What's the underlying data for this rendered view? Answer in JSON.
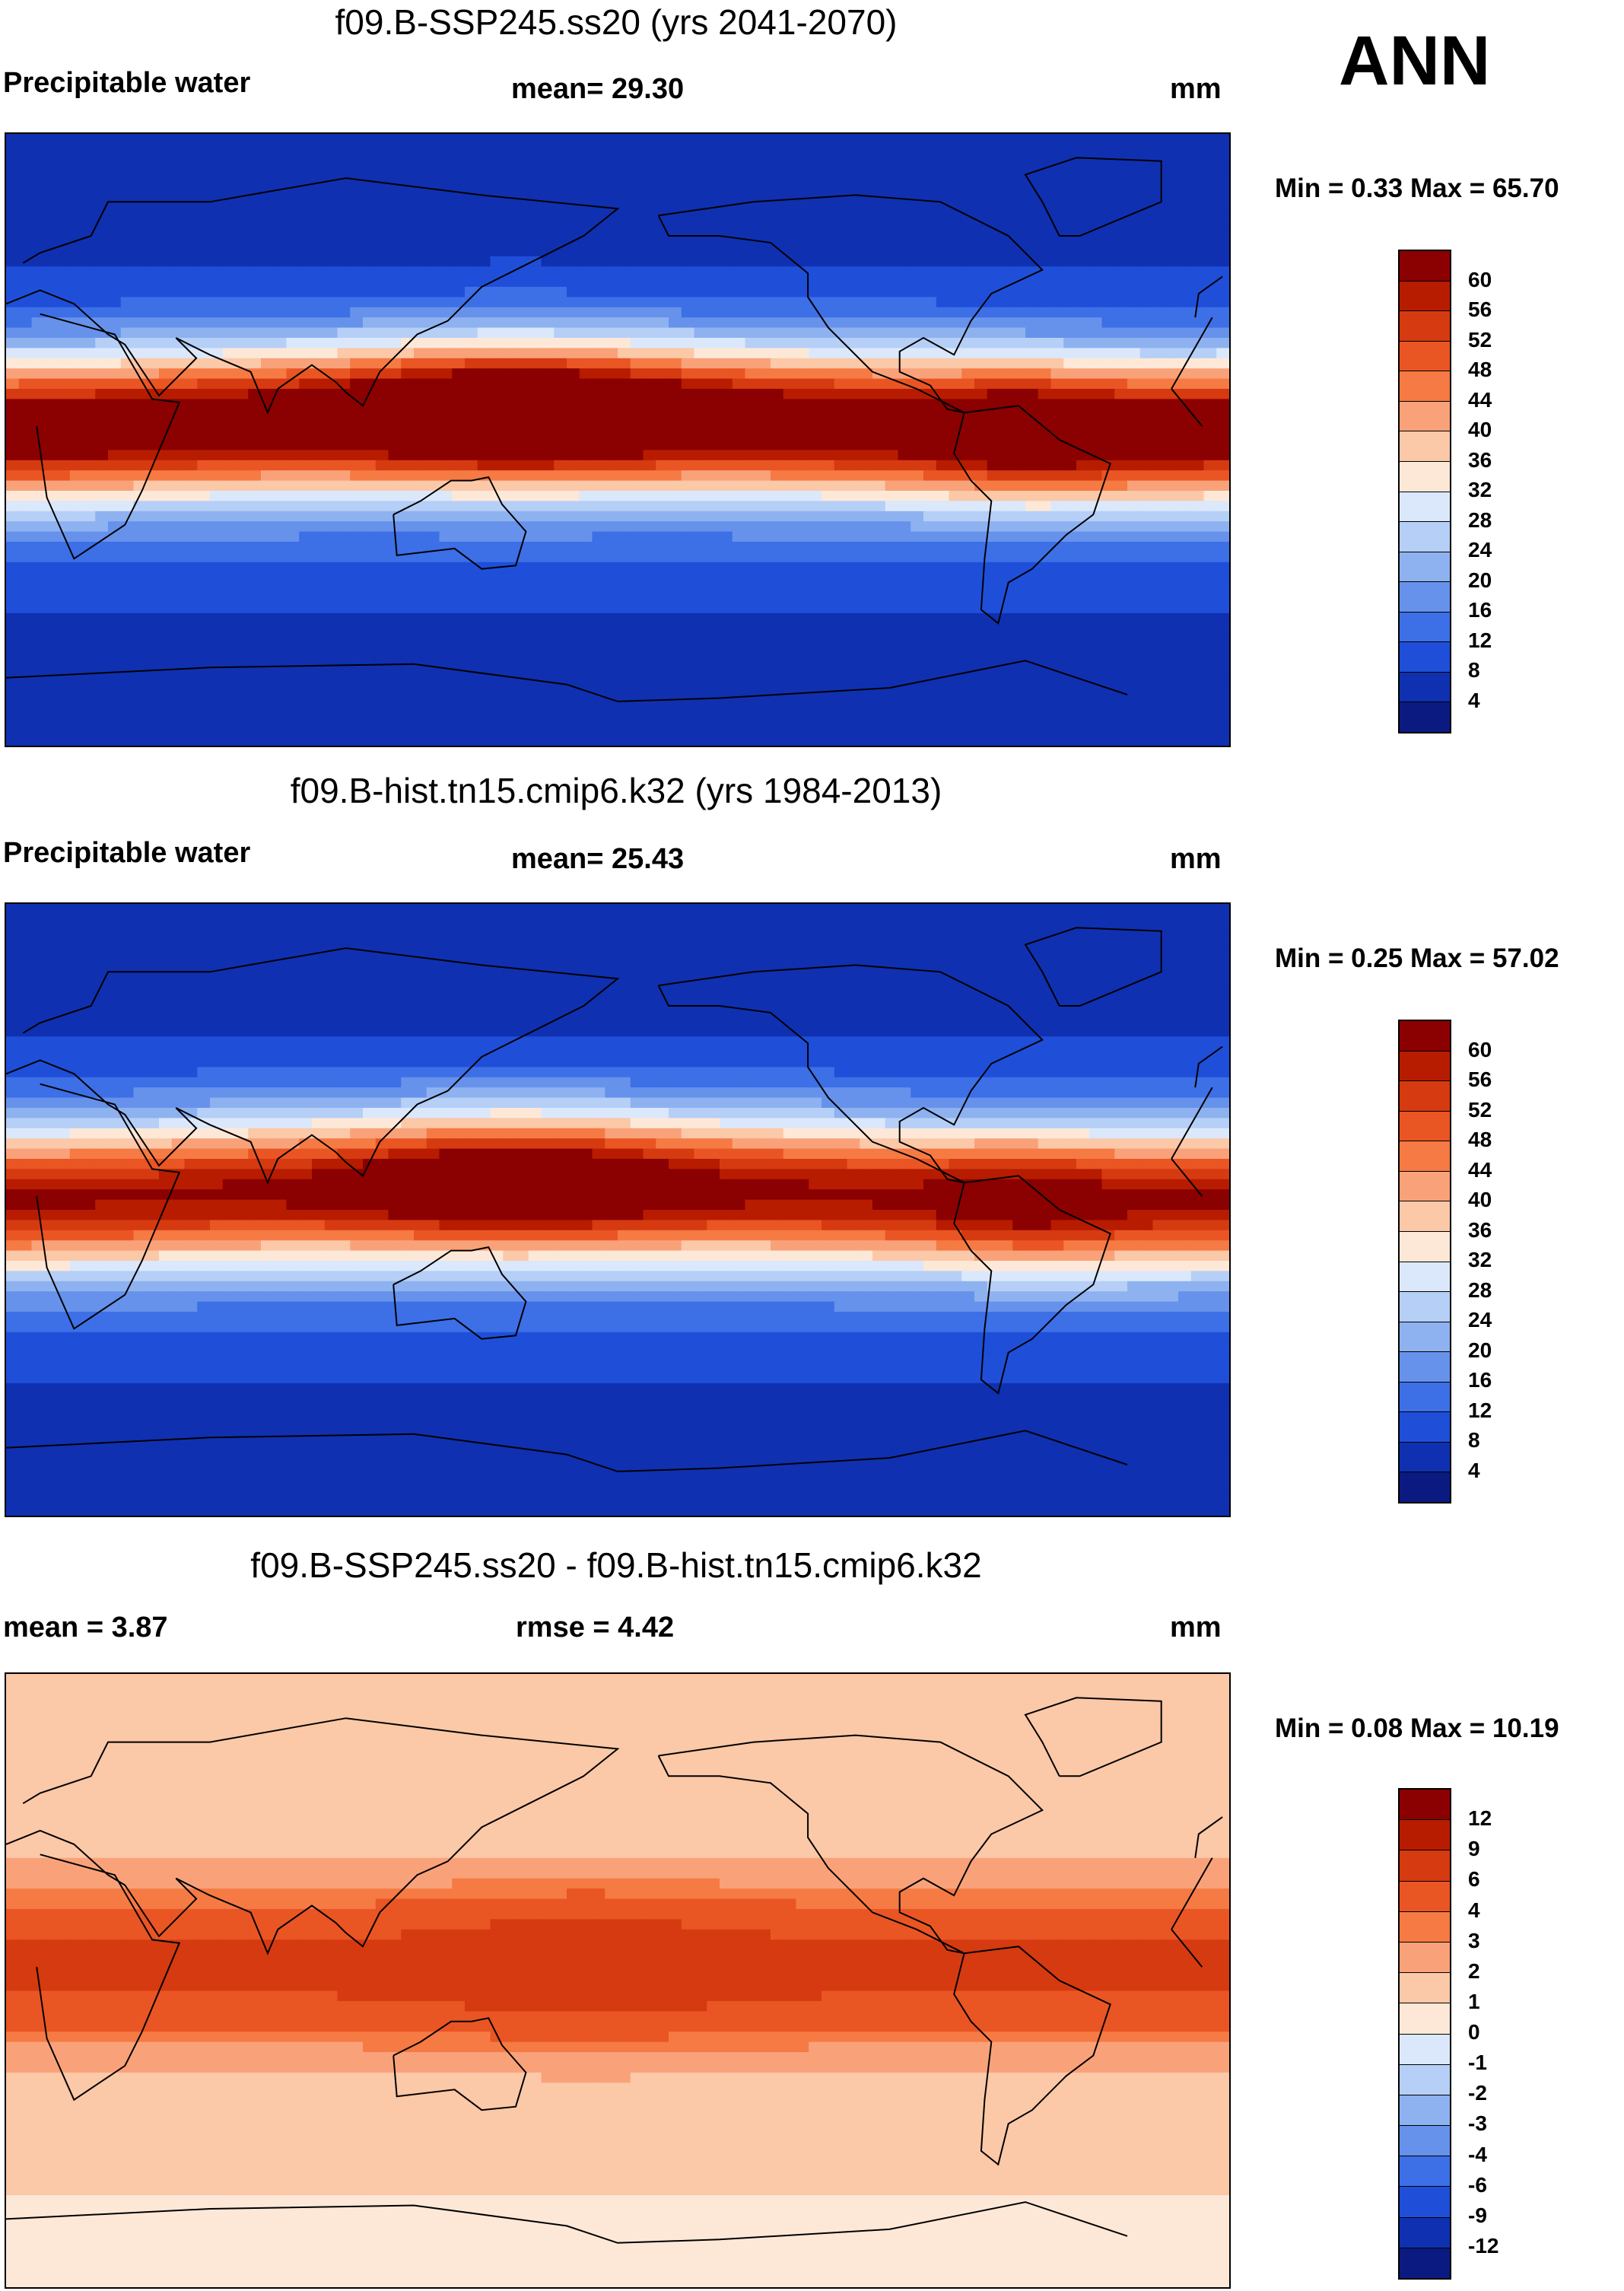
{
  "season": "ANN",
  "panels": [
    {
      "title": "f09.B-SSP245.ss20 (yrs 2041-2070)",
      "left_label": "Precipitable water",
      "center_label": "mean=  29.30",
      "units": "mm",
      "minmax": "Min =   0.33 Max =  65.70",
      "kind": "abs",
      "itcz": 1.0
    },
    {
      "title": "f09.B-hist.tn15.cmip6.k32 (yrs 1984-2013)",
      "left_label": "Precipitable water",
      "center_label": "mean=  25.43",
      "units": "mm",
      "minmax": "Min =   0.25 Max =  57.02",
      "kind": "abs",
      "itcz": 0.85
    },
    {
      "title": "f09.B-SSP245.ss20 - f09.B-hist.tn15.cmip6.k32",
      "left_label": "mean =   3.87",
      "center_label": "rmse =   4.42",
      "units": "mm",
      "minmax": "Min =   0.08 Max =  10.19",
      "kind": "diff",
      "itcz": 1.0
    }
  ],
  "colorbars": {
    "abs": {
      "labels": [
        "60",
        "56",
        "52",
        "48",
        "44",
        "40",
        "36",
        "32",
        "28",
        "24",
        "20",
        "16",
        "12",
        "8",
        "4"
      ],
      "colors": [
        "#8b0000",
        "#b71c00",
        "#d63a10",
        "#ea5524",
        "#f57a44",
        "#f9a27a",
        "#fbc8a8",
        "#fde8d8",
        "#dbe8fb",
        "#b5cff7",
        "#8eb2f0",
        "#6792eb",
        "#3d6fe6",
        "#1f4fd9",
        "#0f30b0",
        "#0a1a80"
      ]
    },
    "diff": {
      "labels": [
        "12",
        "9",
        "6",
        "4",
        "3",
        "2",
        "1",
        "0",
        "-1",
        "-2",
        "-3",
        "-4",
        "-6",
        "-9",
        "-12"
      ],
      "colors": [
        "#8b0000",
        "#b71c00",
        "#d63a10",
        "#ea5524",
        "#f57a44",
        "#f9a27a",
        "#fbc8a8",
        "#fde8d8",
        "#dbe8fb",
        "#b5cff7",
        "#8eb2f0",
        "#6792eb",
        "#3d6fe6",
        "#1f4fd9",
        "#0f30b0",
        "#0a1a80"
      ]
    }
  }
}
